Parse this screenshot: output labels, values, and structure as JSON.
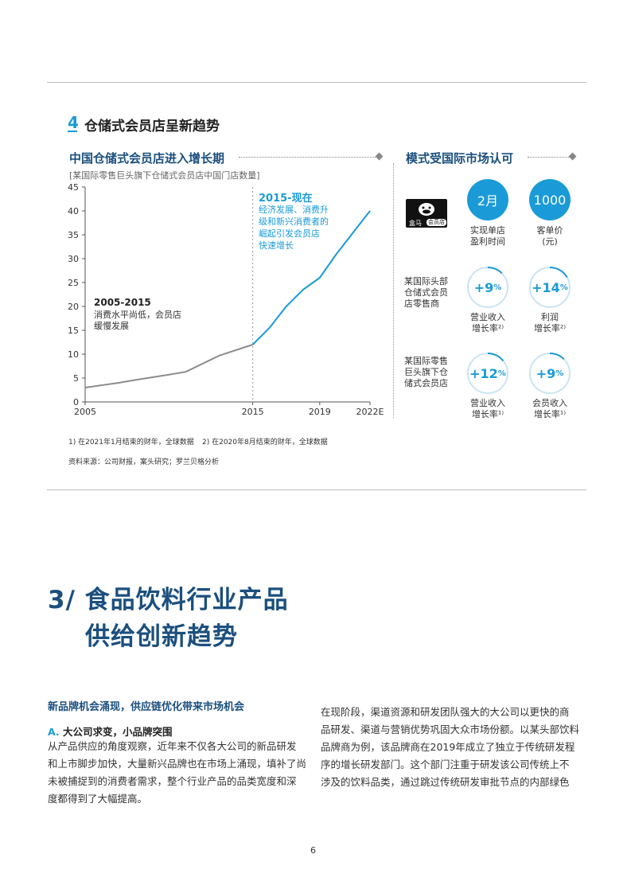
{
  "section": {
    "number": "4",
    "title": "仓储式会员店呈新趋势"
  },
  "chart_data": {
    "type": "line",
    "title": "中国仓储式会员店进入增长期",
    "subtitle": "[某国际零售巨头旗下仓储式会员店中国门店数量]",
    "x_ticks": [
      "2005",
      "2015",
      "2019",
      "2022E"
    ],
    "y_ticks": [
      "0",
      "5",
      "10",
      "15",
      "20",
      "25",
      "30",
      "35",
      "40",
      "45"
    ],
    "ylim": [
      0,
      45
    ],
    "xlim": [
      2005,
      2022
    ],
    "series": [
      {
        "name": "2005-2015",
        "color": "#8c8c8c",
        "x": [
          2005,
          2007,
          2008,
          2010,
          2011,
          2013,
          2015
        ],
        "y": [
          3,
          4,
          4.6,
          5.7,
          6.3,
          9.7,
          12
        ]
      },
      {
        "name": "2015-现在",
        "color": "#1a9bd7",
        "x": [
          2015,
          2016,
          2017,
          2018,
          2019,
          2020,
          2021,
          2022
        ],
        "y": [
          12,
          15.5,
          20,
          23.5,
          26,
          31,
          35.5,
          40
        ]
      }
    ],
    "annotations": [
      {
        "title": "2005-2015",
        "lines": [
          "消费水平尚低，会员店",
          "缓慢发展"
        ]
      },
      {
        "title": "2015-现在",
        "lines": [
          "经济发展、消费升",
          "级和新兴消费者的",
          "崛起引发会员店",
          "快速增长"
        ]
      }
    ]
  },
  "right_panel": {
    "title": "模式受国际市场认可",
    "logo_text": "盒马",
    "logo_badge": "会员店",
    "row1": {
      "c1_value": "2月",
      "c1_caption": [
        "实现单店",
        "盈利时间"
      ],
      "c2_value": "1000",
      "c2_caption": [
        "客单价",
        "(元)"
      ]
    },
    "row2": {
      "label": [
        "某国际头部",
        "仓储式会员",
        "店零售商"
      ],
      "c1_value": "+9",
      "c1_caption": [
        "营业收入",
        "增长率²⁾"
      ],
      "c2_value": "+14",
      "c2_caption": [
        "利润",
        "增长率²⁾"
      ]
    },
    "row3": {
      "label": [
        "某国际零售",
        "巨头旗下仓",
        "储式会员店"
      ],
      "c1_value": "+12",
      "c1_caption": [
        "营业收入",
        "增长率¹⁾"
      ],
      "c2_value": "+9",
      "c2_caption": [
        "会员收入",
        "增长率¹⁾"
      ]
    },
    "percent_sign": "%"
  },
  "footnotes": {
    "note1": "1) 在2021年1月结束的财年，全球数据",
    "note2": "2) 在2020年8月结束的财年，全球数据",
    "source": "资料来源：公司财报，案头研究；罗兰贝格分析"
  },
  "chapter": {
    "line1": "3/ 食品饮料行业产品",
    "line2": "供给创新趋势"
  },
  "body": {
    "heading": "新品牌机会涌现，供应链优化带来市场机会",
    "sub_letter": "A.",
    "sub_title": "大公司求变，小品牌突围",
    "left_lines": [
      "从产品供应的角度观察，近年来不仅各大公司的新品研发",
      "和上市脚步加快，大量新兴品牌也在市场上涌现，填补了尚",
      "未被捕捉到的消费者需求，整个行业产品的品类宽度和深",
      "度都得到了大幅提高。"
    ],
    "right_lines": [
      "在现阶段，渠道资源和研发团队强大的大公司以更快的商",
      "品研发、渠道与营销优势巩固大众市场份额。以某头部饮料",
      "品牌商为例，该品牌商在2019年成立了独立于传统研发程",
      "序的增长研发部门。这个部门注重于研发该公司传统上不",
      "涉及的饮料品类，通过跳过传统研发审批节点的内部绿色"
    ]
  },
  "page_number": "6"
}
